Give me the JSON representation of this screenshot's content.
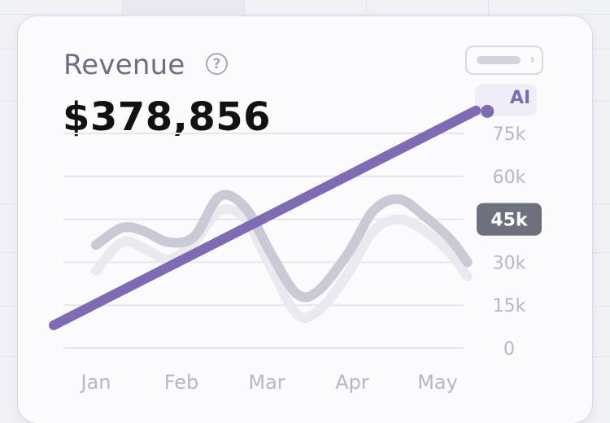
{
  "card": {
    "title": "Revenue",
    "total": "$378,856",
    "help_icon": "question-circle-icon",
    "control_icon": "chevron-right-icon"
  },
  "colors": {
    "ai_line": "#7e6bb4",
    "series_1": "#c9cad6",
    "series_2": "#e9e9ef",
    "tooltip_bg": "#6d717e",
    "grid": "#e6e7ee"
  },
  "chart_data": {
    "type": "line",
    "categories": [
      "Jan",
      "Feb",
      "Mar",
      "Apr",
      "May"
    ],
    "y_ticks": [
      "0",
      "15k",
      "30k",
      "45k",
      "60k",
      "75k"
    ],
    "ylim": [
      0,
      80000
    ],
    "grid": true,
    "highlighted_tick": "45k",
    "series": [
      {
        "name": "AI",
        "x": [
          0,
          4.45
        ],
        "values": [
          8000,
          83000
        ]
      },
      {
        "x": [
          0,
          0.3,
          0.55,
          0.85,
          1.15,
          1.45,
          1.75,
          2.05,
          2.35,
          2.6,
          2.95,
          3.25,
          3.55,
          3.85,
          4.15,
          4.35
        ],
        "values": [
          36000,
          42000,
          41000,
          37000,
          39000,
          53000,
          49000,
          33000,
          19000,
          20000,
          33000,
          48000,
          52000,
          46000,
          38000,
          30000
        ]
      },
      {
        "x": [
          0,
          0.3,
          0.55,
          0.85,
          1.15,
          1.45,
          1.75,
          2.05,
          2.35,
          2.6,
          2.95,
          3.25,
          3.55,
          3.85,
          4.15,
          4.35
        ],
        "values": [
          27000,
          37000,
          35000,
          31000,
          37000,
          48000,
          45000,
          28000,
          12000,
          13000,
          26000,
          41000,
          45000,
          41000,
          33000,
          25000
        ]
      }
    ]
  }
}
